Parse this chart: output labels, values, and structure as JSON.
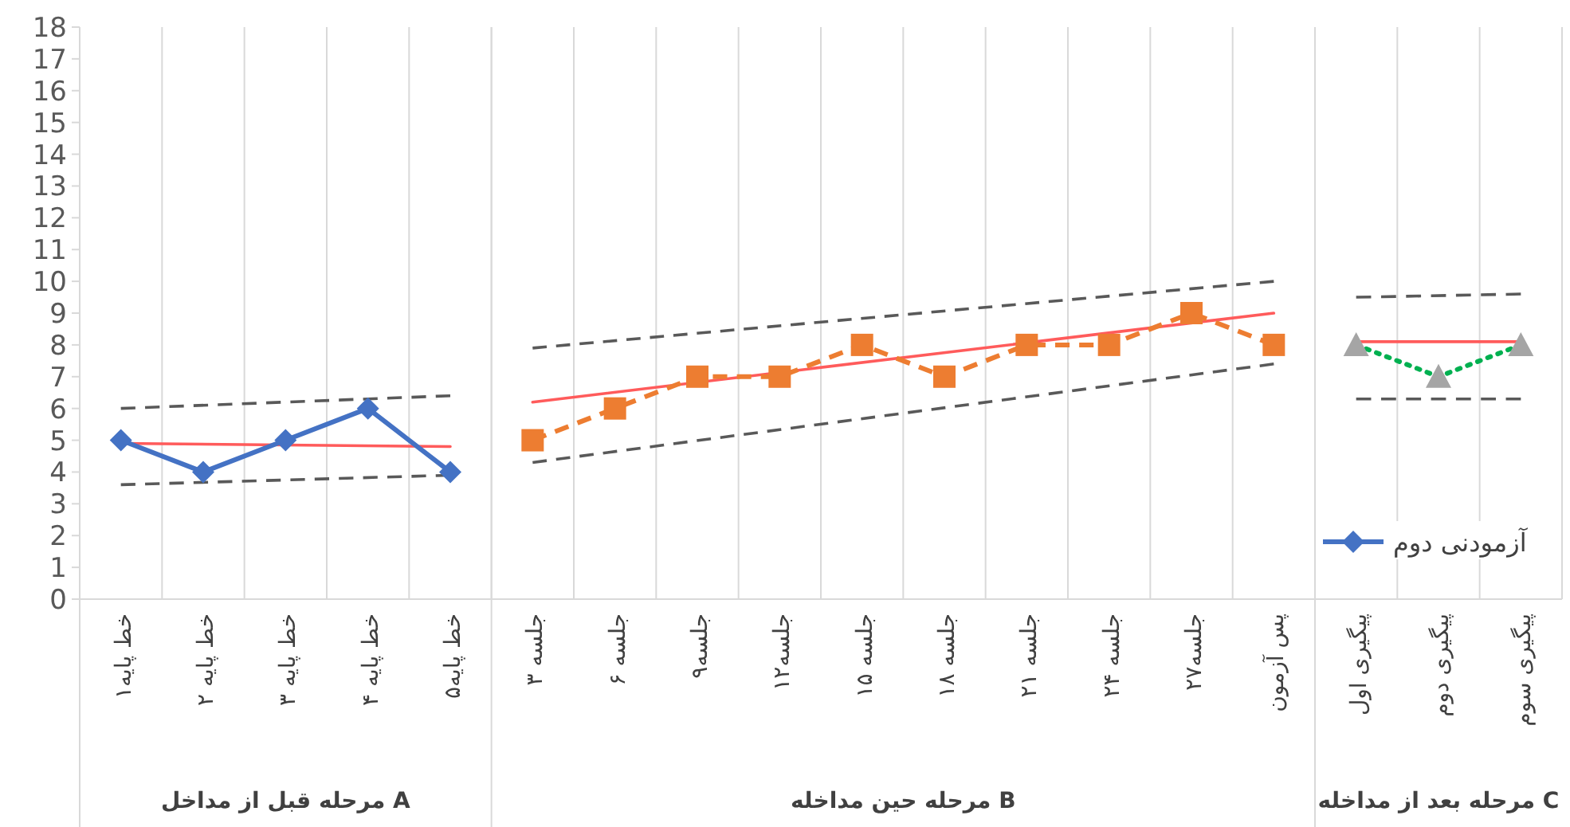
{
  "chart_data": {
    "type": "line",
    "categories": [
      "خط پایه۱",
      "خط پایه ۲",
      "خط پایه ۳",
      "خط پایه ۴",
      "خط پایه۵",
      "جلسه ۳",
      "جلسه ۶",
      "جلسه۹",
      "جلسه۱۲",
      "جلسه ۱۵",
      "جلسه ۱۸",
      "جلسه ۲۱",
      "جلسه ۲۴",
      "جلسه۲۷",
      "پس آزمون",
      "پیگیری اول",
      "پیگیری دوم",
      "پیگیری سوم"
    ],
    "series": [
      {
        "name": "آزمودنی دوم",
        "color": "#4472c4",
        "marker": "diamond",
        "line_style": "solid",
        "values": [
          5,
          4,
          5,
          6,
          4,
          null,
          null,
          null,
          null,
          null,
          null,
          null,
          null,
          null,
          null,
          null,
          null,
          null
        ]
      },
      {
        "color": "#ed7d31",
        "marker": "square",
        "line_style": "dashed",
        "values": [
          null,
          null,
          null,
          null,
          null,
          5,
          6,
          7,
          7,
          8,
          7,
          8,
          8,
          9,
          8,
          null,
          null,
          null
        ]
      },
      {
        "color": "#00b050",
        "colors": [
          null,
          null,
          null,
          null,
          null,
          null,
          null,
          null,
          null,
          null,
          null,
          null,
          null,
          null,
          null,
          "#a5a5a5",
          "#a5a5a5",
          "#a5a5a5"
        ],
        "marker": "triangle",
        "line_style": "dotted",
        "values": [
          null,
          null,
          null,
          null,
          null,
          null,
          null,
          null,
          null,
          null,
          null,
          null,
          null,
          null,
          null,
          8,
          7,
          8
        ]
      },
      {
        "type": "line",
        "color": "#ff5b5b",
        "marker": "none",
        "line_style": "solid",
        "x": [
          "خط پایه۱",
          "خط پایه۵"
        ],
        "values": [
          4.9,
          4.8
        ]
      },
      {
        "type": "line",
        "color": "#595959",
        "marker": "none",
        "line_style": "dashed",
        "x": [
          "خط پایه۱",
          "خط پایه۵"
        ],
        "values": [
          6.0,
          6.4
        ]
      },
      {
        "type": "line",
        "color": "#595959",
        "marker": "none",
        "line_style": "dashed",
        "x": [
          "خط پایه۱",
          "خط پایه۵"
        ],
        "values": [
          3.6,
          3.9
        ]
      },
      {
        "type": "line",
        "color": "#ff5b5b",
        "marker": "none",
        "line_style": "solid",
        "x": [
          "جلسه ۳",
          "پس آزمون"
        ],
        "values": [
          6.2,
          9.0
        ]
      },
      {
        "type": "line",
        "color": "#595959",
        "marker": "none",
        "line_style": "dashed",
        "x": [
          "جلسه ۳",
          "پس آزمون"
        ],
        "values": [
          7.9,
          10.0
        ]
      },
      {
        "type": "line",
        "color": "#595959",
        "marker": "none",
        "line_style": "dashed",
        "x": [
          "جلسه ۳",
          "پس آزمون"
        ],
        "values": [
          4.3,
          7.4
        ]
      },
      {
        "type": "line",
        "color": "#ff5b5b",
        "marker": "none",
        "line_style": "solid",
        "x": [
          "پیگیری اول",
          "پیگیری سوم"
        ],
        "values": [
          8.1,
          8.1
        ]
      },
      {
        "type": "line",
        "color": "#595959",
        "marker": "none",
        "line_style": "dashed",
        "x": [
          "پیگیری اول",
          "پیگیری سوم"
        ],
        "values": [
          9.5,
          9.6
        ]
      },
      {
        "type": "line",
        "color": "#595959",
        "marker": "none",
        "line_style": "dashed",
        "x": [
          "پیگیری اول",
          "پیگیری سوم"
        ],
        "values": [
          6.3,
          6.3
        ]
      }
    ],
    "annotations": [
      "مرحله قبل از مداخل A",
      "مرحله حین مداخله B",
      "مرحله بعد از مداخله C"
    ],
    "ylim": [
      0,
      18
    ],
    "yticks": [
      0,
      1,
      2,
      3,
      4,
      5,
      6,
      7,
      8,
      9,
      10,
      11,
      12,
      13,
      14,
      15,
      16,
      17,
      18
    ],
    "grid": "x",
    "legend": "bottom right"
  }
}
